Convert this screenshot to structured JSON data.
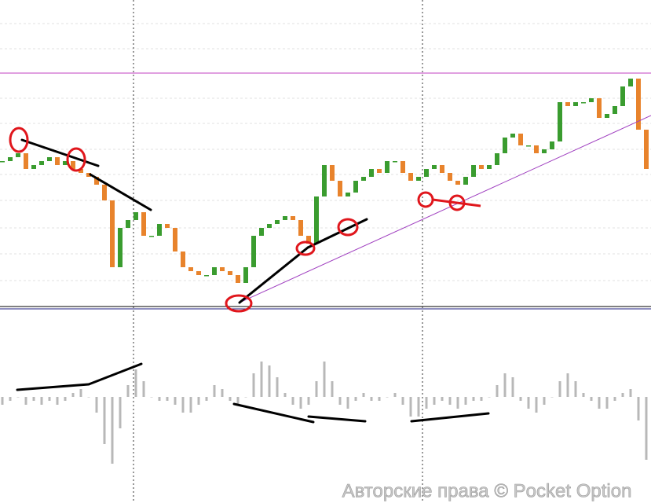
{
  "chart_data": {
    "type": "candlestick",
    "x_step": 10,
    "values": [
      188,
      193,
      198,
      178,
      183,
      188,
      193,
      183,
      188,
      178,
      173,
      168,
      158,
      138,
      53,
      103,
      113,
      123,
      93,
      93,
      108,
      103,
      73,
      53,
      48,
      43,
      43,
      53,
      48,
      43,
      33,
      53,
      93,
      103,
      108,
      113,
      118,
      113,
      93,
      83,
      143,
      183,
      163,
      143,
      148,
      163,
      168,
      178,
      173,
      188,
      188,
      173,
      163,
      168,
      178,
      183,
      173,
      163,
      158,
      168,
      183,
      178,
      183,
      198,
      218,
      223,
      208,
      208,
      198,
      203,
      213,
      263,
      258,
      263,
      263,
      268,
      243,
      248,
      258,
      283,
      293,
      228,
      178
    ],
    "up_color": "#3a9c2f",
    "down_color": "#e8832c",
    "ylim": [
      0,
      393
    ],
    "yticks": [
      36,
      70,
      103,
      138,
      171,
      203,
      236,
      268,
      300,
      331,
      363
    ],
    "grid": true,
    "oscillator": {
      "type": "histogram",
      "color": "#b8b8b8",
      "ylim": [
        -135,
        105
      ],
      "values": [
        -10,
        -5,
        0,
        -10,
        -5,
        -10,
        -5,
        -10,
        -5,
        5,
        10,
        0,
        -20,
        -60,
        -85,
        -40,
        15,
        35,
        20,
        0,
        -5,
        -5,
        -10,
        -20,
        -20,
        -10,
        -5,
        15,
        10,
        -5,
        -10,
        0,
        30,
        45,
        40,
        25,
        5,
        -10,
        -15,
        -10,
        20,
        45,
        20,
        -10,
        -15,
        -5,
        5,
        -5,
        -5,
        0,
        5,
        -10,
        -25,
        -25,
        -15,
        -10,
        -5,
        -10,
        -15,
        -10,
        -5,
        -5,
        0,
        15,
        30,
        25,
        -5,
        -15,
        -20,
        -10,
        0,
        20,
        30,
        20,
        5,
        -5,
        -15,
        -15,
        -5,
        5,
        10,
        -30,
        -80
      ]
    },
    "watermark": "Авторские права © Pocket Option"
  }
}
